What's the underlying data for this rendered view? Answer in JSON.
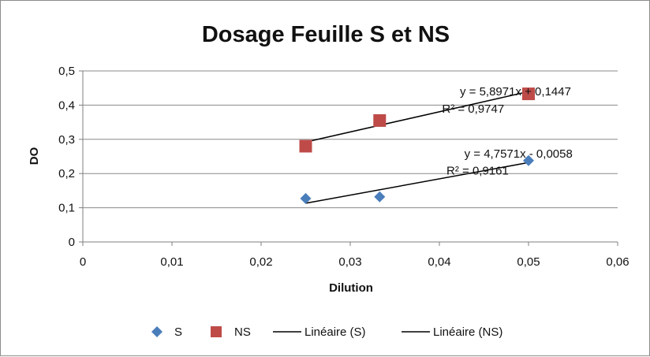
{
  "chart_data": {
    "type": "scatter",
    "title": "Dosage Feuille S et NS",
    "xlabel": "Dilution",
    "ylabel": "DO",
    "xlim": [
      0,
      0.06
    ],
    "ylim": [
      0,
      0.5
    ],
    "x_ticks": [
      "0",
      "0,01",
      "0,02",
      "0,03",
      "0,04",
      "0,05",
      "0,06"
    ],
    "y_ticks": [
      "0",
      "0,1",
      "0,2",
      "0,3",
      "0,4",
      "0,5"
    ],
    "grid": "horizontal",
    "legend_position": "bottom",
    "series": [
      {
        "name": "S",
        "marker": "diamond",
        "color": "#4a7ebb",
        "x": [
          0.025,
          0.0333,
          0.05
        ],
        "y": [
          0.127,
          0.132,
          0.238
        ],
        "trendline": {
          "name": "Linéaire (S)",
          "slope": 4.7571,
          "intercept": -0.0058,
          "x_range": [
            0.025,
            0.05
          ],
          "equation": "y = 4,7571x - 0,0058",
          "r2": "R² = 0,9161"
        }
      },
      {
        "name": "NS",
        "marker": "square",
        "color": "#be4b48",
        "x": [
          0.025,
          0.0333,
          0.05
        ],
        "y": [
          0.28,
          0.355,
          0.433
        ],
        "trendline": {
          "name": "Linéaire (NS)",
          "slope": 5.8971,
          "intercept": 0.1447,
          "x_range": [
            0.025,
            0.05
          ],
          "equation": "y = 5,8971x + 0,1447",
          "r2": "R² = 0,9747"
        }
      }
    ],
    "legend": [
      "S",
      "NS",
      "Linéaire (S)",
      "Linéaire (NS)"
    ]
  }
}
